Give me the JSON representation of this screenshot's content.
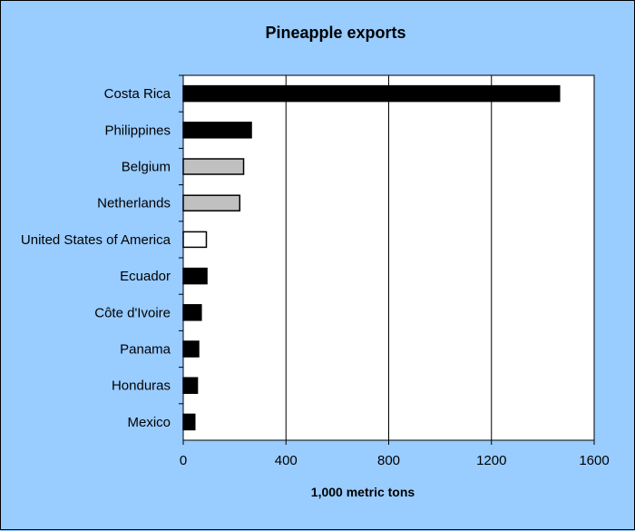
{
  "chart_data": {
    "type": "bar",
    "orientation": "horizontal",
    "title": "Pineapple  exports",
    "xlabel": "1,000 metric tons",
    "ylabel": "",
    "xlim": [
      0,
      1600
    ],
    "xticks": [
      "0",
      "400",
      "800",
      "1200",
      "1600"
    ],
    "grid": true,
    "categories": [
      "Costa Rica",
      "Philippines",
      "Belgium",
      "Netherlands",
      "United States of America",
      "Ecuador",
      "Côte d'Ivoire",
      "Panama",
      "Honduras",
      "Mexico"
    ],
    "values": [
      1465,
      265,
      235,
      220,
      90,
      92,
      70,
      60,
      55,
      45
    ],
    "bar_colors": [
      "#000000",
      "#000000",
      "#c0c0c0",
      "#c0c0c0",
      "#ffffff",
      "#000000",
      "#000000",
      "#000000",
      "#000000",
      "#000000"
    ]
  },
  "colors": {
    "background": "#99ccff",
    "plot_area": "#ffffff"
  }
}
